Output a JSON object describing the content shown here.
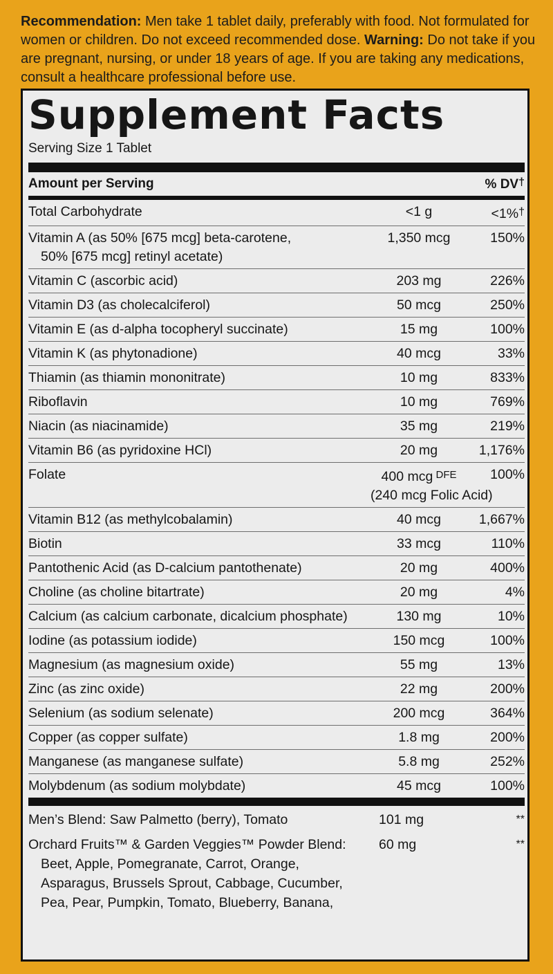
{
  "recommendation": {
    "label": "Recommendation:",
    "text": " Men take 1 tablet daily, preferably with food. Not formulated for women or children. Do not exceed recommended dose. ",
    "warning_label": "Warning:",
    "warning_text": " Do not take if you are pregnant, nursing, or under 18 years of age. If you are taking any medications, consult a healthcare professional before use."
  },
  "facts": {
    "title": "Supplement Facts",
    "serving_size": "Serving Size 1 Tablet",
    "amount_header": "Amount per Serving",
    "dv_header": "% DV",
    "dagger": "†"
  },
  "rows": [
    {
      "name": "Total Carbohydrate",
      "amount": "<1 g",
      "dv": "<1%"
    },
    {
      "name": "Vitamin A (as 50% [675 mcg] beta-carotene,",
      "name2": "50% [675 mcg] retinyl acetate)",
      "amount": "1,350 mcg",
      "dv": "150%"
    },
    {
      "name": "Vitamin C (ascorbic acid)",
      "amount": "203 mg",
      "dv": "226%"
    },
    {
      "name": "Vitamin D3 (as cholecalciferol)",
      "amount": "50 mcg",
      "dv": "250%"
    },
    {
      "name": "Vitamin E (as d-alpha tocopheryl succinate)",
      "amount": "15 mg",
      "dv": "100%"
    },
    {
      "name": "Vitamin K (as phytonadione)",
      "amount": "40 mcg",
      "dv": "33%"
    },
    {
      "name": "Thiamin (as thiamin mononitrate)",
      "amount": "10 mg",
      "dv": "833%"
    },
    {
      "name": "Riboflavin",
      "amount": "10 mg",
      "dv": "769%"
    },
    {
      "name": "Niacin (as niacinamide)",
      "amount": "35 mg",
      "dv": "219%"
    },
    {
      "name": "Vitamin B6 (as pyridoxine HCl)",
      "amount": "20 mg",
      "dv": "1,176%"
    },
    {
      "name": "Folate",
      "amount": "400 mcg",
      "amount_suffix": "DFE",
      "amount2": "(240 mcg Folic Acid)",
      "dv": "100%"
    },
    {
      "name": "Vitamin B12 (as methylcobalamin)",
      "amount": "40 mcg",
      "dv": "1,667%"
    },
    {
      "name": "Biotin",
      "amount": "33 mcg",
      "dv": "110%"
    },
    {
      "name": "Pantothenic Acid (as D-calcium pantothenate)",
      "amount": "20 mg",
      "dv": "400%"
    },
    {
      "name": "Choline (as choline bitartrate)",
      "amount": "20 mg",
      "dv": "4%"
    },
    {
      "name": "Calcium (as calcium carbonate, dicalcium phosphate)",
      "amount": "130 mg",
      "dv": "10%"
    },
    {
      "name": "Iodine (as potassium iodide)",
      "amount": "150 mcg",
      "dv": "100%"
    },
    {
      "name": "Magnesium (as magnesium oxide)",
      "amount": "55 mg",
      "dv": "13%"
    },
    {
      "name": "Zinc (as zinc oxide)",
      "amount": "22 mg",
      "dv": "200%"
    },
    {
      "name": "Selenium (as sodium selenate)",
      "amount": "200 mcg",
      "dv": "364%"
    },
    {
      "name": "Copper (as copper sulfate)",
      "amount": "1.8 mg",
      "dv": "200%"
    },
    {
      "name": "Manganese (as manganese sulfate)",
      "amount": "5.8 mg",
      "dv": "252%"
    },
    {
      "name": "Molybdenum (as sodium molybdate)",
      "amount": "45 mcg",
      "dv": "100%"
    }
  ],
  "blends": [
    {
      "name": "Men’s Blend: Saw Palmetto (berry), Tomato",
      "amount": "101 mg",
      "dv": "**"
    },
    {
      "name": "Orchard Fruits™ & Garden Veggies™ Powder Blend:",
      "list": [
        "Beet, Apple, Pomegranate, Carrot, Orange,",
        "Asparagus, Brussels Sprout, Cabbage, Cucumber,",
        "Pea, Pear, Pumpkin, Tomato, Blueberry, Banana,"
      ],
      "amount": "60 mg",
      "dv": "**"
    }
  ]
}
